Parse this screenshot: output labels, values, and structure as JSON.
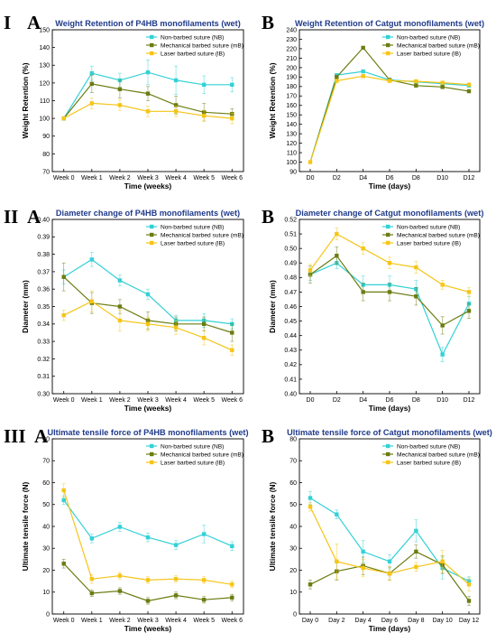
{
  "colors": {
    "NB": "#33d1d6",
    "mB": "#6b7d12",
    "lB": "#f5c518"
  },
  "section_labels": [
    "I",
    "II",
    "III"
  ],
  "chart_data": [
    {
      "id": "IA",
      "section": "I",
      "panel": "A",
      "type": "line",
      "title": "Weight Retention of P4HB monofilaments (wet)",
      "xlabel": "Time (weeks)",
      "ylabel": "Weight Retention (%)",
      "categories": [
        "Week 0",
        "Week 1",
        "Week 2",
        "Week 3",
        "Week 4",
        "Week 5",
        "Week 6"
      ],
      "ylim": [
        70,
        150
      ],
      "yticks": [
        70,
        80,
        90,
        100,
        110,
        120,
        130,
        140,
        150
      ],
      "legend": "top-right",
      "series": [
        {
          "key": "NB",
          "name": "Non-barbed suture (NB)",
          "values": [
            100,
            125.5,
            121.5,
            126,
            121.5,
            119,
            119
          ],
          "errors": [
            0,
            4,
            4,
            7,
            8,
            5,
            4
          ]
        },
        {
          "key": "mB",
          "name": "Mechanical barbed suture (mB)",
          "values": [
            100,
            119.5,
            116.5,
            114,
            107.5,
            103.5,
            102.5
          ],
          "errors": [
            0,
            5,
            5,
            4,
            5,
            5,
            3
          ]
        },
        {
          "key": "lB",
          "name": "Laser barbed suture (lB)",
          "values": [
            100,
            108.5,
            107.5,
            104,
            104,
            101.5,
            100
          ],
          "errors": [
            0,
            3,
            3,
            3,
            3,
            3,
            3
          ]
        }
      ]
    },
    {
      "id": "IB",
      "section": "I",
      "panel": "B",
      "type": "line",
      "title": "Weight Retention of Catgut monofilaments (wet)",
      "xlabel": "Time (days)",
      "ylabel": "Weight Retention (%)",
      "categories": [
        "D0",
        "D2",
        "D4",
        "D6",
        "D8",
        "D10",
        "D12"
      ],
      "ylim": [
        90,
        240
      ],
      "yticks": [
        90,
        100,
        110,
        120,
        130,
        140,
        150,
        160,
        170,
        180,
        190,
        200,
        210,
        220,
        230,
        240
      ],
      "legend": "top-right",
      "series": [
        {
          "key": "NB",
          "name": "Non-barbed suture (NB)",
          "values": [
            null,
            192,
            196,
            187,
            185,
            183,
            181
          ],
          "errors": [
            0,
            0,
            0,
            0,
            0,
            0,
            0
          ]
        },
        {
          "key": "mB",
          "name": "Mechanical barbed suture (mB)",
          "values": [
            null,
            190,
            221,
            187,
            181,
            179.5,
            175
          ],
          "errors": [
            0,
            0,
            0,
            0,
            0,
            0,
            0
          ]
        },
        {
          "key": "lB",
          "name": "Laser barbed suture (lB)",
          "values": [
            100,
            186,
            191,
            186,
            185.5,
            184,
            182
          ],
          "errors": [
            0,
            0,
            0,
            0,
            0,
            0,
            0
          ]
        }
      ]
    },
    {
      "id": "IIA",
      "section": "II",
      "panel": "A",
      "type": "line",
      "title": "Diameter change of P4HB monofilaments (wet)",
      "xlabel": "Time (weeks)",
      "ylabel": "Diameter (mm)",
      "categories": [
        "Week 0",
        "Week 1",
        "Week 2",
        "Week 3",
        "Week 4",
        "Week 5",
        "Week 6"
      ],
      "ylim": [
        0.3,
        0.4
      ],
      "yticks": [
        0.3,
        0.31,
        0.32,
        0.33,
        0.34,
        0.35,
        0.36,
        0.37,
        0.38,
        0.39,
        0.4
      ],
      "legend": "top-right",
      "series": [
        {
          "key": "NB",
          "name": "Non-barbed suture (NB)",
          "values": [
            0.367,
            0.377,
            0.365,
            0.357,
            0.342,
            0.342,
            0.34
          ],
          "errors": [
            0.004,
            0.004,
            0.003,
            0.003,
            0.003,
            0.004,
            0.003
          ]
        },
        {
          "key": "mB",
          "name": "Mechanical barbed suture (mB)",
          "values": [
            0.367,
            0.352,
            0.35,
            0.342,
            0.34,
            0.34,
            0.335
          ],
          "errors": [
            0.008,
            0.006,
            0.004,
            0.005,
            0.004,
            0.004,
            0.005
          ]
        },
        {
          "key": "lB",
          "name": "Laser barbed suture (lB)",
          "values": [
            0.345,
            0.353,
            0.342,
            0.34,
            0.338,
            0.332,
            0.325
          ],
          "errors": [
            0.003,
            0.006,
            0.006,
            0.004,
            0.004,
            0.004,
            0.003
          ]
        }
      ]
    },
    {
      "id": "IIB",
      "section": "II",
      "panel": "B",
      "type": "line",
      "title": "Diameter change of Catgut monofilaments (wet)",
      "xlabel": "Time (days)",
      "ylabel": "Diameter (mm)",
      "categories": [
        "D0",
        "D2",
        "D4",
        "D6",
        "D8",
        "D10",
        "D12"
      ],
      "ylim": [
        0.4,
        0.52
      ],
      "yticks": [
        0.4,
        0.41,
        0.42,
        0.43,
        0.44,
        0.45,
        0.46,
        0.47,
        0.48,
        0.49,
        0.5,
        0.51,
        0.52
      ],
      "legend": "top-right",
      "series": [
        {
          "key": "NB",
          "name": "Non-barbed suture (NB)",
          "values": [
            0.482,
            0.49,
            0.475,
            0.475,
            0.472,
            0.427,
            0.462
          ],
          "errors": [
            0.004,
            0.004,
            0.006,
            0.006,
            0.006,
            0.005,
            0.005
          ]
        },
        {
          "key": "mB",
          "name": "Mechanical barbed suture (mB)",
          "values": [
            0.482,
            0.495,
            0.47,
            0.47,
            0.467,
            0.447,
            0.457
          ],
          "errors": [
            0.006,
            0.006,
            0.006,
            0.006,
            0.006,
            0.006,
            0.005
          ]
        },
        {
          "key": "lB",
          "name": "Laser barbed suture (lB)",
          "values": [
            0.485,
            0.51,
            0.5,
            0.49,
            0.487,
            0.475,
            0.47
          ],
          "errors": [
            0.004,
            0.004,
            0.004,
            0.004,
            0.004,
            0.003,
            0.003
          ]
        }
      ]
    },
    {
      "id": "IIIA",
      "section": "III",
      "panel": "A",
      "type": "line",
      "title": "Ultimate tensile force of P4HB monofilaments (wet)",
      "xlabel": "Time (weeks)",
      "ylabel": "Ultimate tensile force (N)",
      "categories": [
        "Week 0",
        "Week 1",
        "Week 2",
        "Week 3",
        "Week 4",
        "Week 5",
        "Week 6"
      ],
      "ylim": [
        0,
        80
      ],
      "yticks": [
        0,
        10,
        20,
        30,
        40,
        50,
        60,
        70,
        80
      ],
      "legend": "top-right",
      "series": [
        {
          "key": "NB",
          "name": "Non-barbed suture (NB)",
          "values": [
            52,
            34.5,
            39.8,
            35,
            31.5,
            36.5,
            31
          ],
          "errors": [
            2,
            2,
            2,
            2,
            2,
            4,
            2
          ]
        },
        {
          "key": "mB",
          "name": "Mechanical barbed suture (mB)",
          "values": [
            23,
            9.5,
            10.5,
            6,
            8.5,
            6.5,
            7.5
          ],
          "errors": [
            2,
            1.5,
            1.5,
            1.5,
            1.5,
            1.5,
            1.5
          ]
        },
        {
          "key": "lB",
          "name": "Laser barbed suture (lB)",
          "values": [
            56.5,
            16,
            17.5,
            15.5,
            16,
            15.5,
            13.5
          ],
          "errors": [
            3,
            2,
            1.5,
            1.5,
            1.5,
            1.5,
            1.5
          ]
        }
      ]
    },
    {
      "id": "IIIB",
      "section": "III",
      "panel": "B",
      "type": "line",
      "title": "Ultimate tensile force of Catgut monofilaments (wet)",
      "xlabel": "Time (days)",
      "ylabel": "Ultimate tensile force (N)",
      "categories": [
        "Day 0",
        "Day 2",
        "Day 4",
        "Day 6",
        "Day 8",
        "Day 10",
        "Day 12"
      ],
      "ylim": [
        0,
        80
      ],
      "yticks": [
        0,
        10,
        20,
        30,
        40,
        50,
        60,
        70,
        80
      ],
      "legend": "top-right",
      "series": [
        {
          "key": "NB",
          "name": "Non-barbed suture (NB)",
          "values": [
            53,
            45.5,
            28.5,
            24,
            38,
            21,
            15
          ],
          "errors": [
            3,
            2,
            5,
            3,
            5,
            5,
            2
          ]
        },
        {
          "key": "mB",
          "name": "Mechanical barbed suture (mB)",
          "values": [
            13.5,
            19.5,
            22,
            18.5,
            28.5,
            22.5,
            6
          ],
          "errors": [
            2,
            4,
            4,
            3,
            3,
            4,
            2
          ]
        },
        {
          "key": "lB",
          "name": "Laser barbed suture (lB)",
          "values": [
            49,
            24,
            21,
            18.5,
            21.5,
            24,
            13.5
          ],
          "errors": [
            2,
            8,
            4,
            3,
            2,
            5,
            3
          ]
        }
      ]
    }
  ]
}
